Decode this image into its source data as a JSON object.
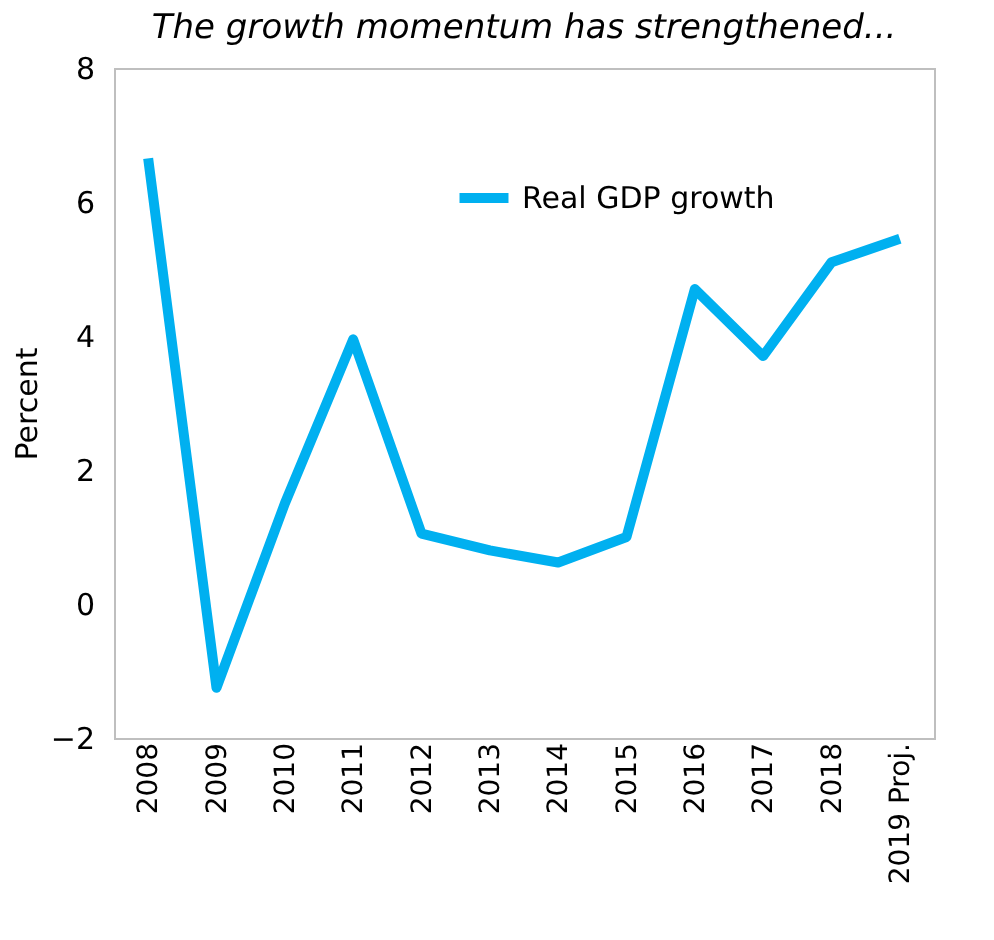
{
  "chart_data": {
    "type": "line",
    "title": "The growth momentum has strengthened...",
    "ylabel": "Percent",
    "categories": [
      "2008",
      "2009",
      "2010",
      "2011",
      "2012",
      "2013",
      "2014",
      "2015",
      "2016",
      "2017",
      "2018",
      "2019 Proj."
    ],
    "series": [
      {
        "name": "Real GDP growth",
        "color": "#00b0f0",
        "values": [
          6.65,
          -1.25,
          1.5,
          3.95,
          1.05,
          0.8,
          0.62,
          1.0,
          4.7,
          3.7,
          5.1,
          5.45
        ]
      }
    ],
    "ylim": [
      -2,
      8
    ],
    "yticks": [
      -2,
      0,
      2,
      4,
      6,
      8
    ],
    "grid": false,
    "legend": "top",
    "marker": "none",
    "line_style": "solid"
  }
}
